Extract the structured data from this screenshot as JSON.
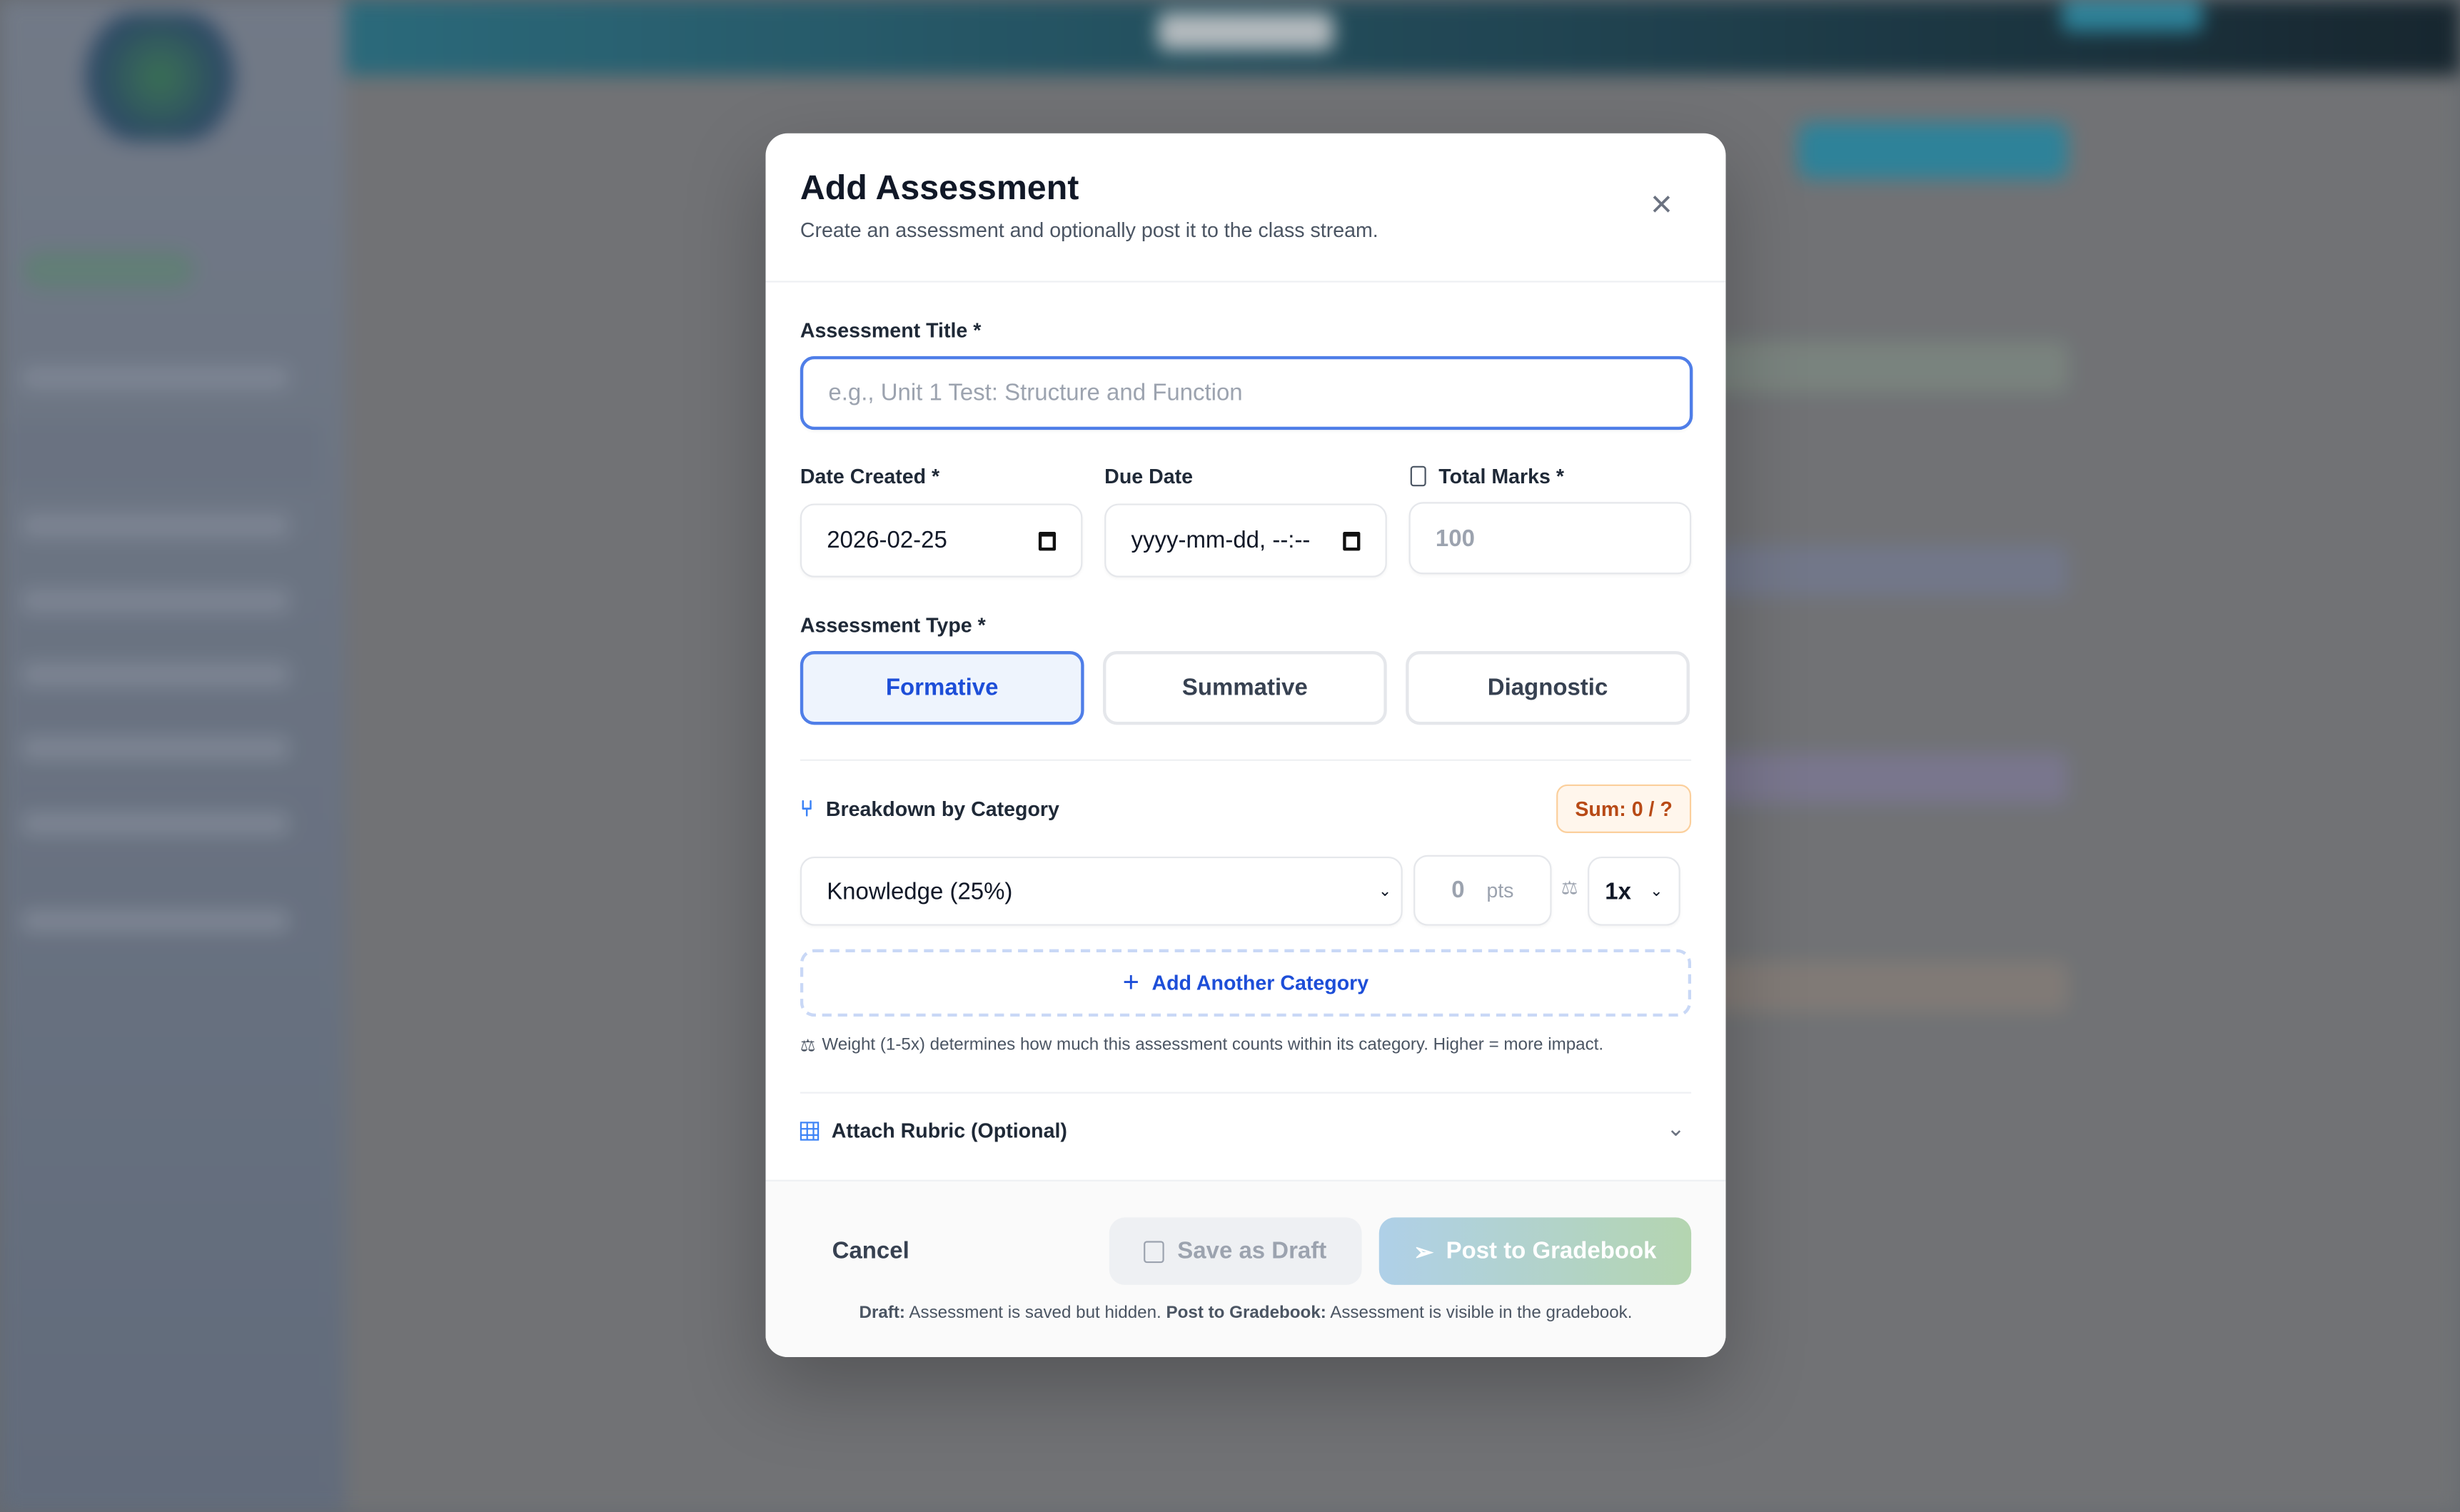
{
  "modal": {
    "title": "Add Assessment",
    "subtitle": "Create an assessment and optionally post it to the class stream.",
    "title_label": "Assessment Title *",
    "title_placeholder": "e.g., Unit 1 Test: Structure and Function",
    "date_created_label": "Date Created *",
    "date_created_value": "2026-02-25",
    "due_date_label": "Due Date",
    "due_date_value": "yyyy-mm-dd, --:--",
    "total_marks_label": "Total Marks *",
    "total_marks_placeholder": "100",
    "type_label": "Assessment Type *",
    "types": [
      "Formative",
      "Summative",
      "Diagnostic"
    ],
    "selected_type": "Formative",
    "breakdown_label": "Breakdown by Category",
    "sum_badge": "Sum: 0 / ?",
    "category_value": "Knowledge (25%)",
    "points_placeholder": "0",
    "points_unit": "pts",
    "weight_value": "1x",
    "add_category": "Add Another Category",
    "weight_note": "Weight (1-5x) determines how much this assessment counts within its category. Higher = more impact.",
    "rubric_label": "Attach Rubric (Optional)",
    "cancel": "Cancel",
    "save_draft": "Save as Draft",
    "post": "Post to Gradebook",
    "footnote_draft_bold": "Draft:",
    "footnote_draft": " Assessment is saved but hidden. ",
    "footnote_post_bold": "Post to Gradebook:",
    "footnote_post": " Assessment is visible in the gradebook."
  },
  "colors": {
    "accent": "#1d4ed8",
    "focus": "#4f7ee8",
    "badge_text": "#b84a16"
  }
}
